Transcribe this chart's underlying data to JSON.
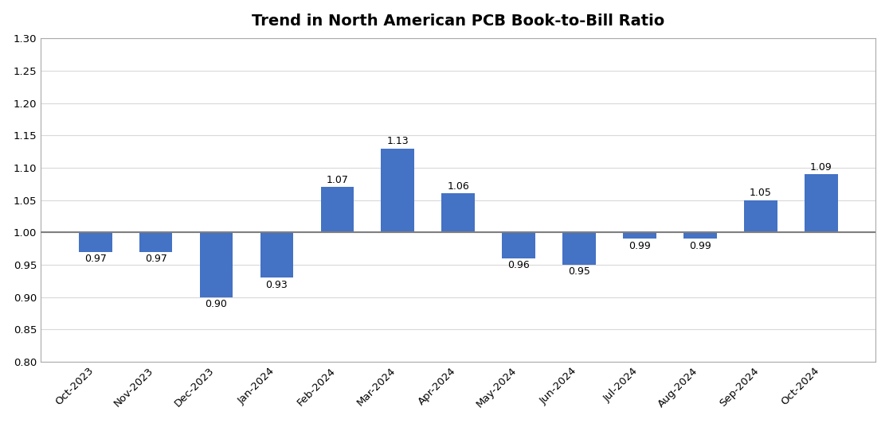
{
  "title": "Trend in North American PCB Book-to-Bill Ratio",
  "categories": [
    "Oct-2023",
    "Nov-2023",
    "Dec-2023",
    "Jan-2024",
    "Feb-2024",
    "Mar-2024",
    "Apr-2024",
    "May-2024",
    "Jun-2024",
    "Jul-2024",
    "Aug-2024",
    "Sep-2024",
    "Oct-2024"
  ],
  "values": [
    0.97,
    0.97,
    0.9,
    0.93,
    1.07,
    1.13,
    1.06,
    0.96,
    0.95,
    0.99,
    0.99,
    1.05,
    1.09
  ],
  "bar_color": "#4472C4",
  "bar_bottom": 1.0,
  "ylim": [
    0.8,
    1.3
  ],
  "yticks": [
    0.8,
    0.85,
    0.9,
    0.95,
    1.0,
    1.05,
    1.1,
    1.15,
    1.2,
    1.25,
    1.3
  ],
  "hline_y": 1.0,
  "hline_color": "#7F7F7F",
  "grid_color": "#D9D9D9",
  "background_color": "#FFFFFF",
  "border_color": "#AAAAAA",
  "title_fontsize": 14,
  "label_fontsize": 9,
  "tick_fontsize": 9.5,
  "bar_width": 0.55
}
